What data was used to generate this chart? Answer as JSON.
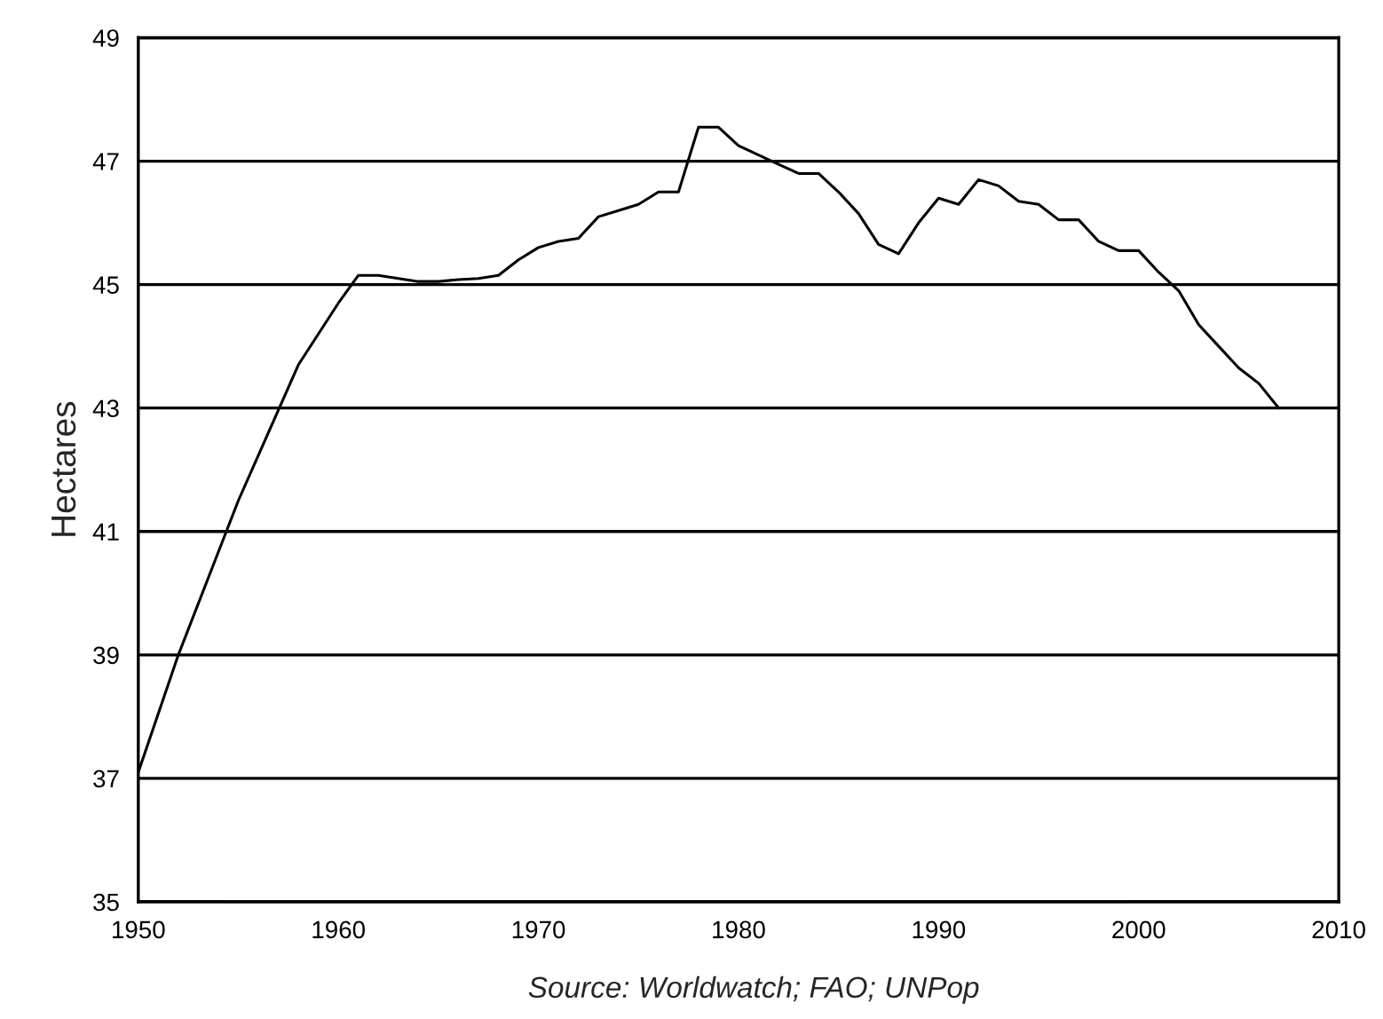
{
  "chart_data": {
    "type": "line",
    "ylabel": "Hectares",
    "annotations": [
      "Source: Worldwatch; FAO; UNPop"
    ],
    "x": [
      1950,
      1952,
      1955,
      1958,
      1960,
      1961,
      1962,
      1963,
      1964,
      1965,
      1966,
      1967,
      1968,
      1969,
      1970,
      1971,
      1972,
      1973,
      1974,
      1975,
      1976,
      1977,
      1978,
      1979,
      1980,
      1981,
      1982,
      1983,
      1984,
      1985,
      1986,
      1987,
      1988,
      1989,
      1990,
      1991,
      1992,
      1993,
      1994,
      1995,
      1996,
      1997,
      1998,
      1999,
      2000,
      2001,
      2002,
      2003,
      2004,
      2005,
      2006,
      2007
    ],
    "series": [
      {
        "color": "#000000",
        "values": [
          37.1,
          39.0,
          41.5,
          43.7,
          44.7,
          45.15,
          45.15,
          45.1,
          45.05,
          45.05,
          45.08,
          45.1,
          45.15,
          45.4,
          45.6,
          45.7,
          45.75,
          46.1,
          46.2,
          46.3,
          46.5,
          46.5,
          47.55,
          47.55,
          47.25,
          47.1,
          46.95,
          46.8,
          46.8,
          46.5,
          46.15,
          45.65,
          45.5,
          46.0,
          46.4,
          46.3,
          46.7,
          46.6,
          46.35,
          46.3,
          46.05,
          46.05,
          45.7,
          45.55,
          45.55,
          45.2,
          44.9,
          44.35,
          44.0,
          43.65,
          43.4,
          43.0
        ]
      }
    ],
    "xlim": [
      1950,
      2010
    ],
    "xticks": [
      1950,
      1960,
      1970,
      1980,
      1990,
      2000,
      2010
    ],
    "ylim": [
      35,
      49
    ],
    "yticks": [
      35,
      37,
      39,
      41,
      43,
      45,
      47,
      49
    ],
    "grid": "y",
    "marker": "none",
    "line_style": "solid"
  }
}
